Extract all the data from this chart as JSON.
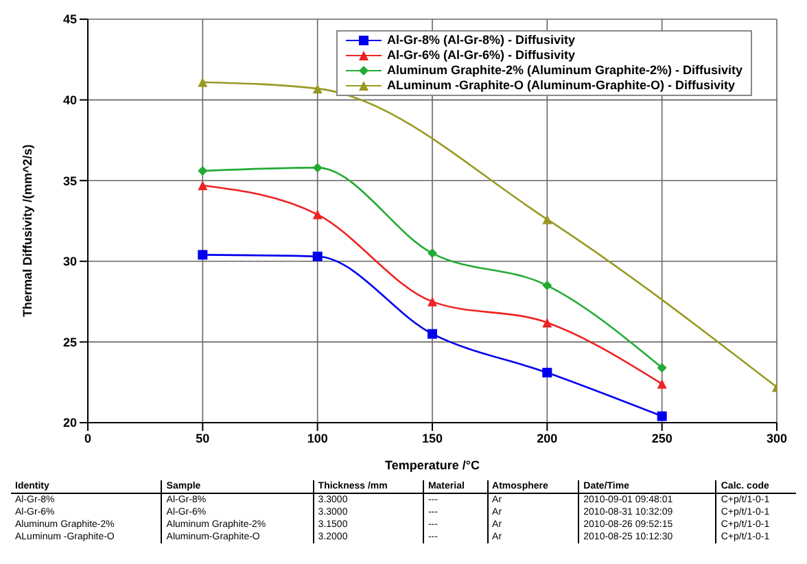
{
  "chart_data": {
    "type": "line",
    "xlabel": "Temperature /°C",
    "ylabel": "Thermal Diffusivity /(mm^2/s)",
    "xlim": [
      0,
      300
    ],
    "xticks": [
      0,
      50,
      100,
      150,
      200,
      250,
      300
    ],
    "ylim": [
      20,
      45
    ],
    "yticks": [
      20,
      25,
      30,
      35,
      40,
      45
    ],
    "grid": true,
    "legend": "top right",
    "line_style": "solid",
    "series": [
      {
        "name": "Al-Gr-8% (Al-Gr-8%) - Diffusivity",
        "color": "#0000ee",
        "marker": "square",
        "x": [
          50,
          100,
          150,
          200,
          250
        ],
        "values": [
          30.4,
          30.3,
          25.5,
          23.1,
          20.4
        ]
      },
      {
        "name": "Al-Gr-6% (Al-Gr-6%) - Diffusivity",
        "color": "#ee2222",
        "marker": "triangle",
        "x": [
          50,
          100,
          150,
          200,
          250
        ],
        "values": [
          34.7,
          32.9,
          27.5,
          26.2,
          22.4
        ]
      },
      {
        "name": "Aluminum Graphite-2% (Aluminum Graphite-2%) - Diffusivity",
        "color": "#22aa33",
        "marker": "diamond",
        "x": [
          50,
          100,
          150,
          200,
          250
        ],
        "values": [
          35.6,
          35.8,
          30.5,
          28.5,
          23.4
        ]
      },
      {
        "name": "ALuminum -Graphite-O (Aluminum-Graphite-O) - Diffusivity",
        "color": "#999922",
        "marker": "triangle",
        "x": [
          50,
          100,
          200,
          300
        ],
        "values": [
          41.1,
          40.7,
          32.6,
          22.2
        ]
      }
    ],
    "annotations": [
      "Identity",
      "Sample",
      "Thickness /mm",
      "Material",
      "Atmosphere",
      "Date/Time",
      "Calc. code",
      "Al-Gr-8%",
      "Al-Gr-8%",
      "3.3000",
      "---",
      "Ar",
      "2010-09-01 09:48:01",
      "C+p/t/1-0-1",
      "Al-Gr-6%",
      "Al-Gr-6%",
      "3.3000",
      "---",
      "Ar",
      "2010-08-31 10:32:09",
      "C+p/t/1-0-1",
      "Aluminum Graphite-2%",
      "Aluminum Graphite-2%",
      "3.1500",
      "---",
      "Ar",
      "2010-08-26 09:52:15",
      "C+p/t/1-0-1",
      "ALuminum -Graphite-O",
      "Aluminum-Graphite-O",
      "3.2000",
      "---",
      "Ar",
      "2010-08-25 10:12:30",
      "C+p/t/1-0-1"
    ]
  }
}
